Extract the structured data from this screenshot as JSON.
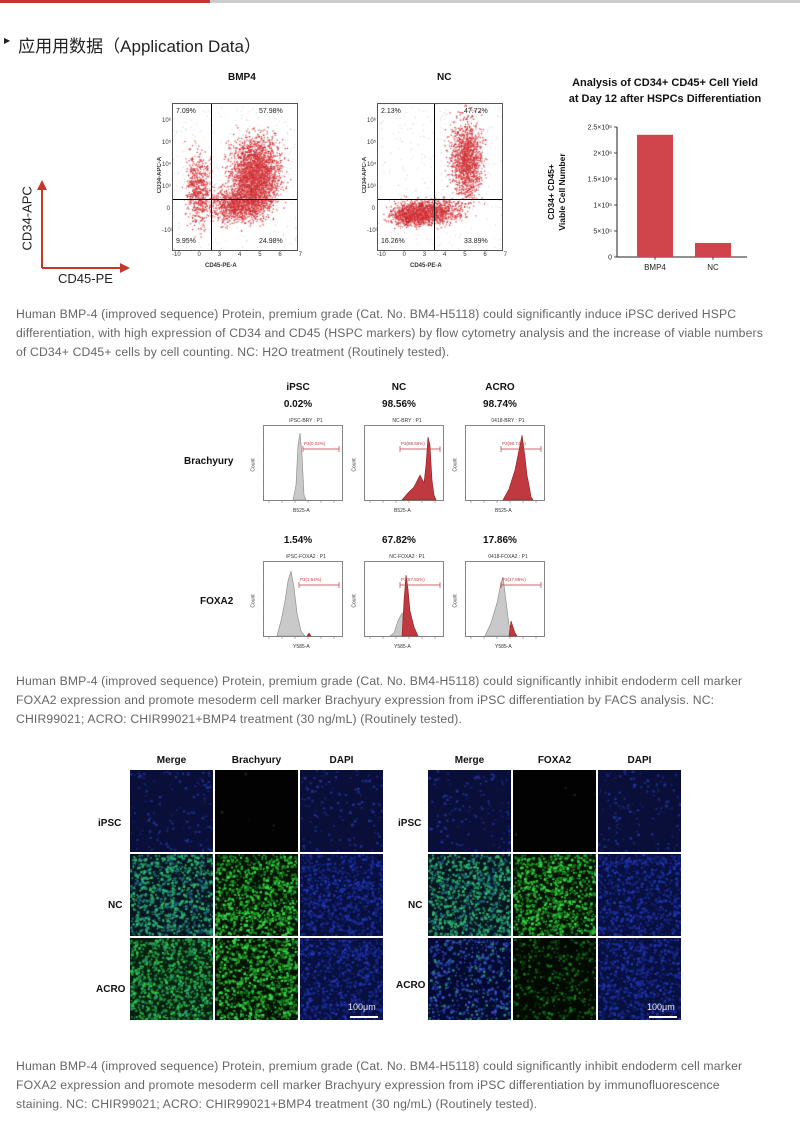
{
  "section": {
    "title": "应用用数据（Application Data）"
  },
  "fig1": {
    "axis_y": "CD34-APC",
    "axis_x": "CD45-PE",
    "plots": [
      {
        "name": "BMP4",
        "ylabel": "CD34-APC-A",
        "xlabel": "CD45-PE-A",
        "q_ul": "7.09%",
        "q_ur": "57.98%",
        "q_ll": "9.95%",
        "q_lr": "24.98%"
      },
      {
        "name": "NC",
        "ylabel": "CD34-APC-A",
        "xlabel": "CD45-PE-A",
        "q_ul": "2.13%",
        "q_ur": "47.72%",
        "q_ll": "16.26%",
        "q_lr": "33.89%"
      }
    ],
    "y_ticks": [
      "10⁶",
      "10⁵",
      "10⁴",
      "10³",
      "0",
      "-10³"
    ],
    "x_ticks": [
      "-10",
      "0",
      "3",
      "4",
      "5",
      "6",
      "7"
    ]
  },
  "chart_data": {
    "type": "bar",
    "title": "Analysis of CD34+ CD45+ Cell Yield at Day 12 after HSPCs Differentiation",
    "title_line1": "Analysis of CD34+ CD45+ Cell Yield",
    "title_line2": "at Day 12 after HSPCs Differentiation",
    "categories": [
      "BMP4",
      "NC"
    ],
    "values": [
      2350000,
      270000
    ],
    "ylabel": "CD34+ CD45+ Viable Cell Number",
    "ylabel_line1": "CD34+ CD45+",
    "ylabel_line2": "Viable Cell Number",
    "ylim": [
      0,
      2500000
    ],
    "yticks": [
      0,
      500000,
      1000000,
      1500000,
      2000000,
      2500000
    ],
    "ytick_labels": [
      "0",
      "5×10⁵",
      "1×10⁶",
      "1.5×10⁶",
      "2×10⁶",
      "2.5×10⁶"
    ],
    "color": "#d0454c"
  },
  "caption1": "Human BMP-4 (improved sequence) Protein, premium grade (Cat. No. BM4-H5118) could significantly induce iPSC derived HSPC differentiation, with high expression of CD34 and CD45 (HSPC markers) by flow cytometry analysis and the increase of viable numbers of CD34+ CD45+ cells by cell counting. NC: H2O treatment (Routinely tested).",
  "fig2": {
    "columns": [
      "iPSC",
      "NC",
      "ACRO"
    ],
    "rows": [
      {
        "label": "Brachyury",
        "values": [
          "0.02%",
          "98.56%",
          "98.74%"
        ],
        "panel_titles": [
          "iPSC-BRY : P1",
          "NC-BRY : P1",
          "0418-BRY : P1"
        ],
        "gates": [
          "P3(0.02%)",
          "P3(98.56%)",
          "P3(98.74%)"
        ],
        "xaxis": "B525-A"
      },
      {
        "label": "FOXA2",
        "values": [
          "1.54%",
          "67.82%",
          "17.86%"
        ],
        "panel_titles": [
          "iPSC-FOXA2 : P1",
          "NC-FOXA2 : P1",
          "0418-FOXA2 : P1"
        ],
        "gates": [
          "P3(1.54%)",
          "P3(67.82%)",
          "P3(17.86%)"
        ],
        "xaxis": "Y585-A"
      }
    ],
    "count_label": "Count"
  },
  "caption2": "Human BMP-4 (improved sequence) Protein, premium grade (Cat. No. BM4-H5118) could significantly inhibit endoderm cell marker FOXA2 expression and promote mesoderm cell marker Brachyury expression from iPSC differentiation by FACS analysis. NC: CHIR99021; ACRO: CHIR99021+BMP4 treatment (30 ng/mL) (Routinely tested).",
  "fig3": {
    "left": {
      "headers": [
        "Merge",
        "Brachyury",
        "DAPI"
      ],
      "scale": "100μm"
    },
    "right": {
      "headers": [
        "Merge",
        "FOXA2",
        "DAPI"
      ],
      "scale": "100μm"
    },
    "rows": [
      "iPSC",
      "NC",
      "ACRO"
    ]
  },
  "caption3": "Human BMP-4 (improved sequence) Protein, premium grade (Cat. No. BM4-H5118) could significantly inhibit endoderm cell marker FOXA2 expression and promote mesoderm cell marker Brachyury expression from iPSC differentiation by immunofluorescence staining. NC: CHIR99021; ACRO: CHIR99021+BMP4 treatment (30 ng/mL) (Routinely tested)."
}
